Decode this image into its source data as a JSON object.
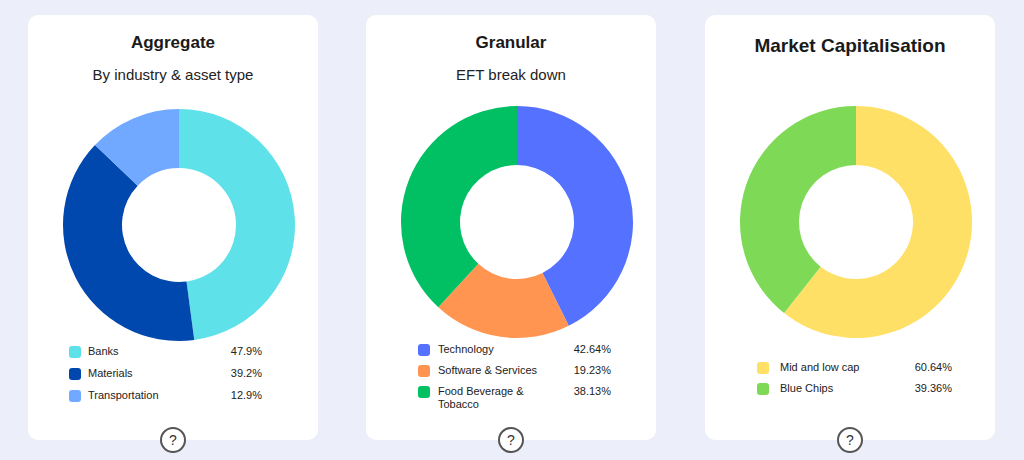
{
  "chart_data": [
    {
      "type": "pie",
      "title": "Aggregate",
      "subtitle": "By industry & asset type",
      "categories": [
        "Banks",
        "Materials",
        "Transportation"
      ],
      "values": [
        47.9,
        39.2,
        12.9
      ],
      "value_labels": [
        "47.9%",
        "39.2%",
        "12.9%"
      ],
      "colors": [
        "#5ee1e8",
        "#0048ad",
        "#70a9ff"
      ],
      "annotations": [
        "?"
      ]
    },
    {
      "type": "pie",
      "title": "Granular",
      "subtitle": "EFT break down",
      "categories": [
        "Technology",
        "Software & Services",
        "Food Beverage & Tobacco"
      ],
      "values": [
        42.64,
        19.23,
        38.13
      ],
      "value_labels": [
        "42.64%",
        "19.23%",
        "38.13%"
      ],
      "colors": [
        "#5471ff",
        "#ff9551",
        "#00c063"
      ],
      "annotations": [
        "?"
      ]
    },
    {
      "type": "pie",
      "title": "Market Capitalisation",
      "categories": [
        "Mid and low cap",
        "Blue Chips"
      ],
      "values": [
        60.64,
        39.36
      ],
      "value_labels": [
        "60.64%",
        "39.36%"
      ],
      "colors": [
        "#ffe066",
        "#7ed957"
      ],
      "annotations": [
        "?"
      ]
    }
  ]
}
